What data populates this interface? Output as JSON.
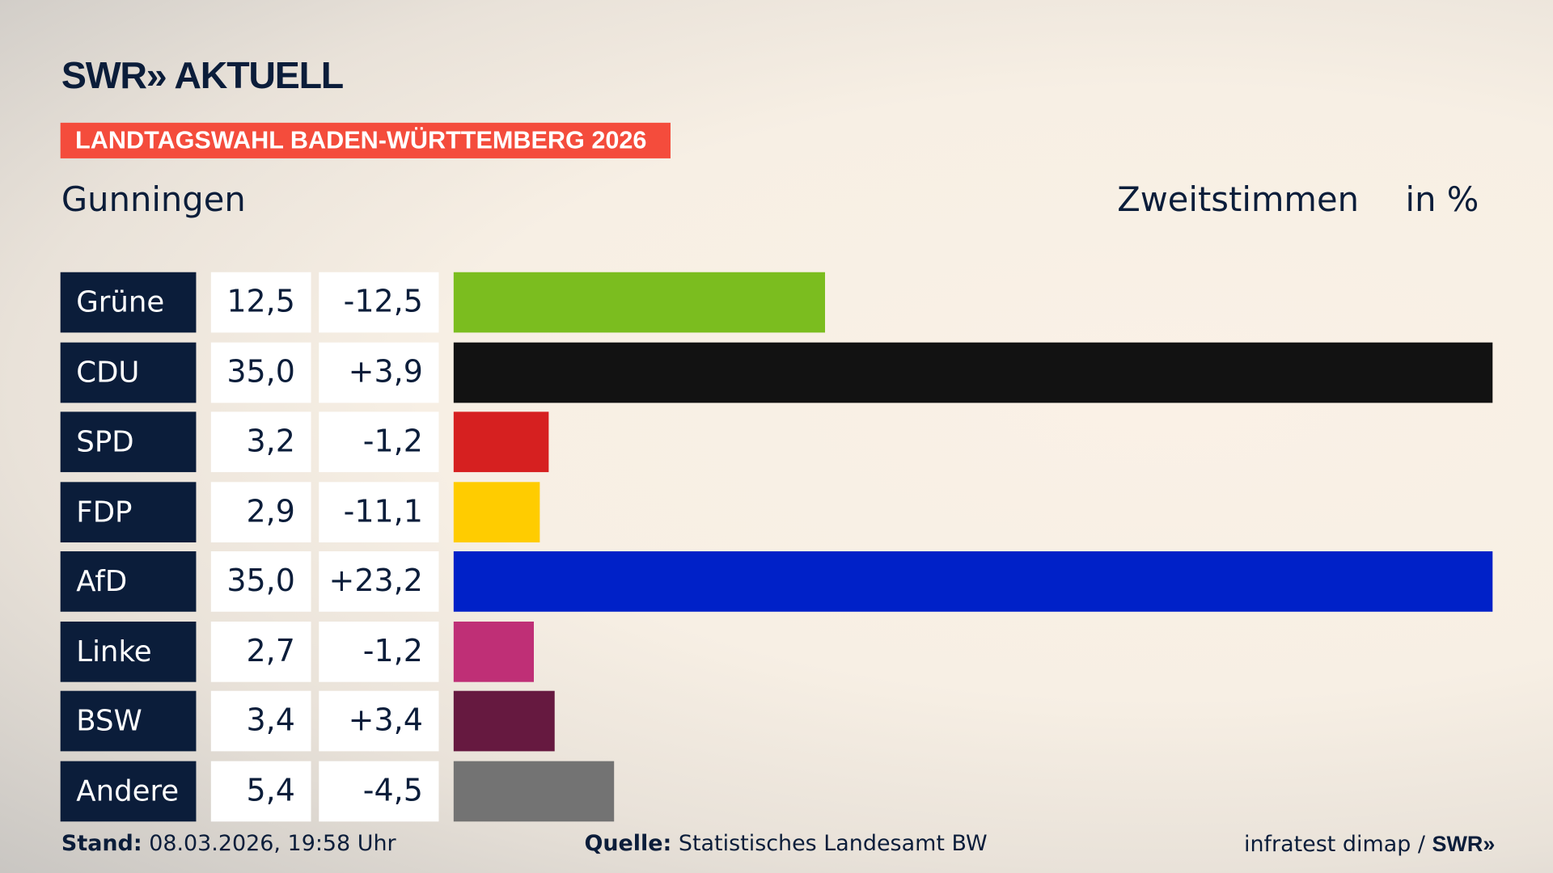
{
  "header": {
    "logo": "SWR» AKTUELL",
    "banner": "LANDTAGSWAHL BADEN-WÜRTTEMBERG 2026",
    "location": "Gunningen",
    "vote_type": "Zweitstimmen",
    "unit": "in %"
  },
  "chart_data": {
    "type": "bar",
    "orientation": "horizontal",
    "xlim": [
      0,
      35
    ],
    "categories": [
      "Grüne",
      "CDU",
      "SPD",
      "FDP",
      "AfD",
      "Linke",
      "BSW",
      "Andere"
    ],
    "values": [
      12.5,
      35.0,
      3.2,
      2.9,
      35.0,
      2.7,
      3.4,
      5.4
    ],
    "value_labels": [
      "12,5",
      "35,0",
      "3,2",
      "2,9",
      "35,0",
      "2,7",
      "3,4",
      "5,4"
    ],
    "diff_labels": [
      "-12,5",
      "+3,9",
      "-1,2",
      "-11,1",
      "+23,2",
      "-1,2",
      "+3,4",
      "-4,5"
    ],
    "colors": [
      "#7bbd1f",
      "#121212",
      "#d62020",
      "#ffcc00",
      "#0021c8",
      "#bf2f76",
      "#661940",
      "#737373"
    ]
  },
  "footer": {
    "stand_label": "Stand:",
    "stand_value": "08.03.2026, 19:58 Uhr",
    "source_label": "Quelle:",
    "source_value": "Statistisches Landesamt BW",
    "credit": "infratest dimap / ",
    "credit_logo": "SWR»"
  }
}
